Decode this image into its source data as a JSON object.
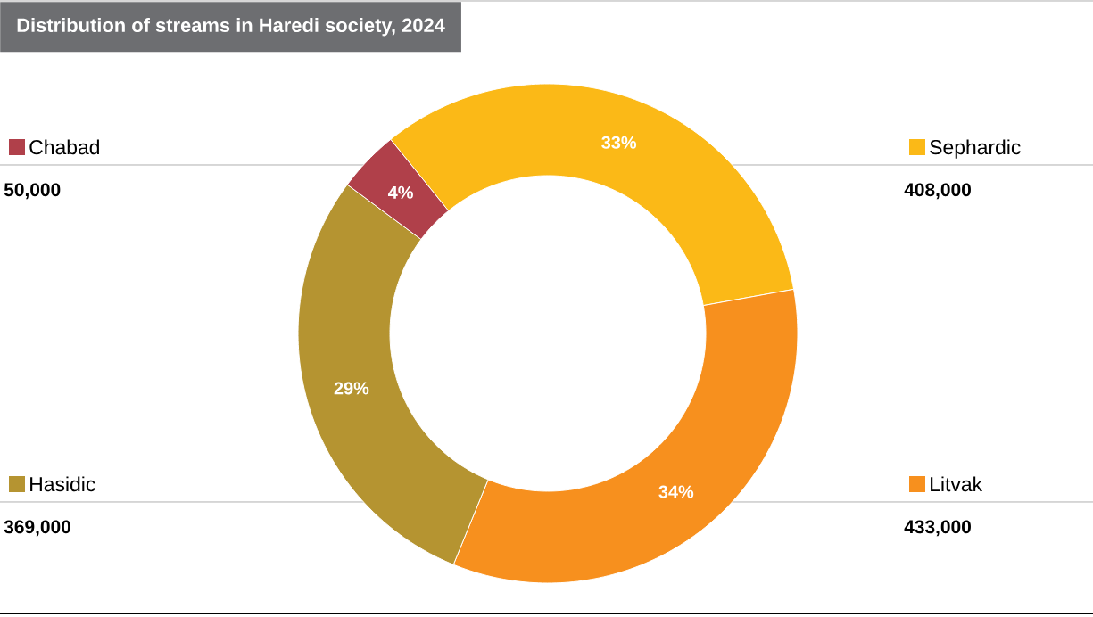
{
  "chart_data": {
    "type": "donut",
    "title": "Distribution of streams in Haredi society, 2024",
    "categories": [
      "Sephardic",
      "Litvak",
      "Hasidic",
      "Chabad"
    ],
    "values": [
      33,
      34,
      29,
      4
    ],
    "value_labels": [
      "33%",
      "34%",
      "29%",
      "4%"
    ],
    "legend": "top left",
    "colors": [
      "#fbb917",
      "#f7901e",
      "#b59431",
      "#b0404a"
    ],
    "annotations": [
      "408,000",
      "433,000",
      "369,000",
      "50,000"
    ]
  }
}
